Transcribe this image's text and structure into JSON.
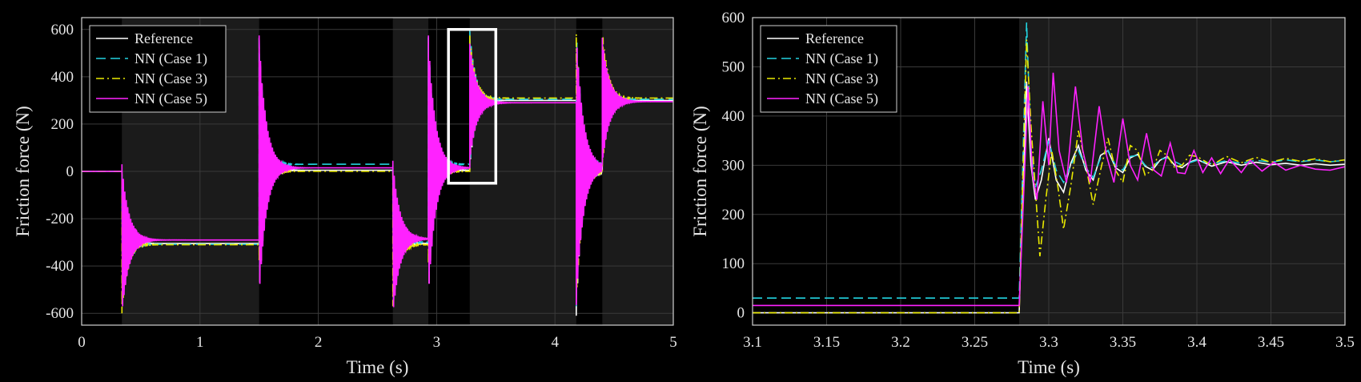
{
  "chart_data": [
    {
      "type": "line",
      "xlabel": "Time (s)",
      "ylabel": "Friction force (N)",
      "xlim": [
        0,
        5
      ],
      "ylim": [
        -650,
        650
      ],
      "xticks": [
        0,
        1,
        2,
        3,
        4,
        5
      ],
      "yticks": [
        -600,
        -400,
        -200,
        0,
        200,
        400,
        600
      ],
      "grid": true,
      "legend_position": "top-left",
      "shaded_intervals": [
        [
          0.34,
          1.5
        ],
        [
          2.63,
          2.93
        ],
        [
          3.28,
          4.18
        ],
        [
          4.4,
          5.0
        ]
      ],
      "zoom_box": {
        "x": [
          3.1,
          3.5
        ],
        "y": [
          -50,
          600
        ]
      },
      "series": [
        {
          "name": "Reference",
          "color": "#ffffff",
          "style": "solid",
          "segments": [
            {
              "t0": 0.0,
              "t1": 0.34,
              "level": 0
            },
            {
              "t0": 0.34,
              "t1": 1.5,
              "level": -305,
              "amp": 260,
              "decay": 0.05,
              "freq": 80
            },
            {
              "t0": 1.5,
              "t1": 2.63,
              "level": 5,
              "amp": 560,
              "decay": 0.05,
              "freq": 80
            },
            {
              "t0": 2.63,
              "t1": 2.93,
              "level": -305,
              "amp": 280,
              "decay": 0.05,
              "freq": 80
            },
            {
              "t0": 2.93,
              "t1": 3.28,
              "level": 5,
              "amp": 560,
              "decay": 0.05,
              "freq": 80
            },
            {
              "t0": 3.28,
              "t1": 4.18,
              "level": 300,
              "amp": 290,
              "decay": 0.05,
              "freq": 80
            },
            {
              "t0": 4.18,
              "t1": 4.4,
              "level": 0,
              "amp": -610,
              "decay": 0.05,
              "freq": 80
            },
            {
              "t0": 4.4,
              "t1": 5.0,
              "level": 300,
              "amp": 260,
              "decay": 0.05,
              "freq": 80
            }
          ]
        },
        {
          "name": "NN (Case 1)",
          "color": "#22d3e0",
          "style": "dashed",
          "segments": [
            {
              "t0": 0.0,
              "t1": 0.34,
              "level": 0
            },
            {
              "t0": 0.34,
              "t1": 1.5,
              "level": -308,
              "amp": 280,
              "decay": 0.05,
              "freq": 80
            },
            {
              "t0": 1.5,
              "t1": 2.63,
              "level": 30,
              "amp": 540,
              "decay": 0.05,
              "freq": 80
            },
            {
              "t0": 2.63,
              "t1": 2.93,
              "level": -300,
              "amp": 290,
              "decay": 0.05,
              "freq": 80
            },
            {
              "t0": 2.93,
              "t1": 3.28,
              "level": 30,
              "amp": 540,
              "decay": 0.05,
              "freq": 80
            },
            {
              "t0": 3.28,
              "t1": 4.18,
              "level": 305,
              "amp": 290,
              "decay": 0.05,
              "freq": 80
            },
            {
              "t0": 4.18,
              "t1": 4.4,
              "level": 30,
              "amp": -600,
              "decay": 0.05,
              "freq": 80
            },
            {
              "t0": 4.4,
              "t1": 5.0,
              "level": 305,
              "amp": 260,
              "decay": 0.05,
              "freq": 80
            }
          ]
        },
        {
          "name": "NN (Case 3)",
          "color": "#eaea00",
          "style": "dashdot",
          "segments": [
            {
              "t0": 0.0,
              "t1": 0.34,
              "level": 0
            },
            {
              "t0": 0.34,
              "t1": 1.5,
              "level": -310,
              "amp": -290,
              "decay": 0.05,
              "freq": 80
            },
            {
              "t0": 1.5,
              "t1": 2.63,
              "level": 0,
              "amp": -380,
              "decay": 0.05,
              "freq": 80
            },
            {
              "t0": 2.63,
              "t1": 2.93,
              "level": -310,
              "amp": -260,
              "decay": 0.05,
              "freq": 80
            },
            {
              "t0": 2.93,
              "t1": 3.28,
              "level": 0,
              "amp": -390,
              "decay": 0.05,
              "freq": 80
            },
            {
              "t0": 3.28,
              "t1": 4.18,
              "level": 310,
              "amp": 270,
              "decay": 0.05,
              "freq": 80
            },
            {
              "t0": 4.18,
              "t1": 4.4,
              "level": 0,
              "amp": 580,
              "decay": 0.05,
              "freq": 80
            },
            {
              "t0": 4.4,
              "t1": 5.0,
              "level": 310,
              "amp": -300,
              "decay": 0.05,
              "freq": 80
            }
          ]
        },
        {
          "name": "NN (Case 5)",
          "color": "#ff22ff",
          "style": "solid",
          "segments": [
            {
              "t0": 0.0,
              "t1": 0.34,
              "level": 0
            },
            {
              "t0": 0.34,
              "t1": 1.5,
              "level": -290,
              "amp": 320,
              "decay": 0.06,
              "freq": 80
            },
            {
              "t0": 1.5,
              "t1": 2.63,
              "level": 15,
              "amp": 560,
              "decay": 0.06,
              "freq": 80
            },
            {
              "t0": 2.63,
              "t1": 2.93,
              "level": -285,
              "amp": 330,
              "decay": 0.06,
              "freq": 80
            },
            {
              "t0": 2.93,
              "t1": 3.28,
              "level": 15,
              "amp": 560,
              "decay": 0.06,
              "freq": 80
            },
            {
              "t0": 3.28,
              "t1": 4.18,
              "level": 290,
              "amp": 250,
              "decay": 0.06,
              "freq": 80
            },
            {
              "t0": 4.18,
              "t1": 4.4,
              "level": 15,
              "amp": -580,
              "decay": 0.06,
              "freq": 80
            },
            {
              "t0": 4.4,
              "t1": 5.0,
              "level": 295,
              "amp": 270,
              "decay": 0.06,
              "freq": 80
            }
          ]
        }
      ]
    },
    {
      "type": "line",
      "xlabel": "Time (s)",
      "ylabel": "Friction force (N)",
      "xlim": [
        3.1,
        3.5
      ],
      "ylim": [
        -25,
        600
      ],
      "xticks": [
        3.1,
        3.15,
        3.2,
        3.25,
        3.3,
        3.35,
        3.4,
        3.45,
        3.5
      ],
      "yticks": [
        0,
        100,
        200,
        300,
        400,
        500,
        600
      ],
      "grid": true,
      "legend_position": "top-left",
      "shaded_intervals": [
        [
          3.28,
          3.5
        ]
      ],
      "series": [
        {
          "name": "Reference",
          "color": "#ffffff",
          "style": "solid",
          "pre_level": 0,
          "step_time": 3.28,
          "rise_end": 3.285,
          "points": [
            [
              3.285,
              470
            ],
            [
              3.288,
              300
            ],
            [
              3.291,
              230
            ],
            [
              3.295,
              270
            ],
            [
              3.3,
              355
            ],
            [
              3.305,
              270
            ],
            [
              3.31,
              245
            ],
            [
              3.315,
              305
            ],
            [
              3.32,
              340
            ],
            [
              3.325,
              290
            ],
            [
              3.33,
              270
            ],
            [
              3.335,
              320
            ],
            [
              3.34,
              330
            ],
            [
              3.345,
              295
            ],
            [
              3.35,
              285
            ],
            [
              3.355,
              315
            ],
            [
              3.36,
              322
            ],
            [
              3.365,
              298
            ],
            [
              3.37,
              290
            ],
            [
              3.375,
              310
            ],
            [
              3.38,
              318
            ],
            [
              3.385,
              300
            ],
            [
              3.39,
              295
            ],
            [
              3.395,
              306
            ],
            [
              3.4,
              312
            ],
            [
              3.41,
              298
            ],
            [
              3.42,
              307
            ],
            [
              3.43,
              300
            ],
            [
              3.44,
              306
            ],
            [
              3.45,
              301
            ],
            [
              3.46,
              304
            ],
            [
              3.47,
              300
            ],
            [
              3.48,
              303
            ],
            [
              3.49,
              300
            ],
            [
              3.5,
              302
            ]
          ]
        },
        {
          "name": "NN (Case 1)",
          "color": "#22d3e0",
          "style": "dashed",
          "pre_level": 30,
          "step_time": 3.28,
          "rise_end": 3.285,
          "points": [
            [
              3.285,
              590
            ],
            [
              3.288,
              330
            ],
            [
              3.291,
              255
            ],
            [
              3.295,
              290
            ],
            [
              3.3,
              350
            ],
            [
              3.305,
              290
            ],
            [
              3.31,
              265
            ],
            [
              3.315,
              300
            ],
            [
              3.32,
              330
            ],
            [
              3.325,
              295
            ],
            [
              3.33,
              275
            ],
            [
              3.335,
              315
            ],
            [
              3.34,
              330
            ],
            [
              3.345,
              300
            ],
            [
              3.35,
              290
            ],
            [
              3.355,
              318
            ],
            [
              3.36,
              320
            ],
            [
              3.365,
              300
            ],
            [
              3.37,
              295
            ],
            [
              3.375,
              312
            ],
            [
              3.38,
              315
            ],
            [
              3.39,
              300
            ],
            [
              3.4,
              310
            ],
            [
              3.41,
              303
            ],
            [
              3.42,
              309
            ],
            [
              3.43,
              304
            ],
            [
              3.44,
              310
            ],
            [
              3.45,
              306
            ],
            [
              3.46,
              311
            ],
            [
              3.47,
              307
            ],
            [
              3.48,
              311
            ],
            [
              3.49,
              307
            ],
            [
              3.5,
              310
            ]
          ]
        },
        {
          "name": "NN (Case 3)",
          "color": "#eaea00",
          "style": "dashdot",
          "pre_level": 0,
          "step_time": 3.28,
          "rise_end": 3.285,
          "points": [
            [
              3.285,
              555
            ],
            [
              3.288,
              380
            ],
            [
              3.291,
              250
            ],
            [
              3.294,
              115
            ],
            [
              3.298,
              230
            ],
            [
              3.302,
              330
            ],
            [
              3.306,
              260
            ],
            [
              3.31,
              170
            ],
            [
              3.315,
              260
            ],
            [
              3.32,
              370
            ],
            [
              3.325,
              300
            ],
            [
              3.33,
              220
            ],
            [
              3.335,
              290
            ],
            [
              3.34,
              355
            ],
            [
              3.345,
              290
            ],
            [
              3.35,
              265
            ],
            [
              3.355,
              340
            ],
            [
              3.36,
              330
            ],
            [
              3.365,
              280
            ],
            [
              3.37,
              290
            ],
            [
              3.375,
              330
            ],
            [
              3.38,
              320
            ],
            [
              3.385,
              295
            ],
            [
              3.39,
              300
            ],
            [
              3.395,
              320
            ],
            [
              3.4,
              318
            ],
            [
              3.41,
              300
            ],
            [
              3.42,
              318
            ],
            [
              3.43,
              305
            ],
            [
              3.44,
              316
            ],
            [
              3.45,
              306
            ],
            [
              3.46,
              314
            ],
            [
              3.47,
              308
            ],
            [
              3.48,
              313
            ],
            [
              3.49,
              307
            ],
            [
              3.5,
              311
            ]
          ]
        },
        {
          "name": "NN (Case 5)",
          "color": "#ff22ff",
          "style": "solid",
          "pre_level": 15,
          "step_time": 3.28,
          "rise_end": 3.286,
          "points": [
            [
              3.286,
              460
            ],
            [
              3.289,
              280
            ],
            [
              3.292,
              230
            ],
            [
              3.296,
              430
            ],
            [
              3.3,
              300
            ],
            [
              3.303,
              488
            ],
            [
              3.307,
              330
            ],
            [
              3.312,
              265
            ],
            [
              3.318,
              460
            ],
            [
              3.323,
              330
            ],
            [
              3.328,
              265
            ],
            [
              3.334,
              420
            ],
            [
              3.339,
              320
            ],
            [
              3.344,
              265
            ],
            [
              3.35,
              395
            ],
            [
              3.355,
              300
            ],
            [
              3.36,
              270
            ],
            [
              3.366,
              365
            ],
            [
              3.371,
              290
            ],
            [
              3.376,
              278
            ],
            [
              3.382,
              345
            ],
            [
              3.387,
              285
            ],
            [
              3.392,
              283
            ],
            [
              3.398,
              330
            ],
            [
              3.404,
              285
            ],
            [
              3.41,
              315
            ],
            [
              3.416,
              283
            ],
            [
              3.422,
              312
            ],
            [
              3.43,
              285
            ],
            [
              3.436,
              310
            ],
            [
              3.444,
              288
            ],
            [
              3.452,
              306
            ],
            [
              3.46,
              290
            ],
            [
              3.47,
              300
            ],
            [
              3.48,
              292
            ],
            [
              3.49,
              290
            ],
            [
              3.5,
              297
            ]
          ]
        }
      ]
    }
  ]
}
